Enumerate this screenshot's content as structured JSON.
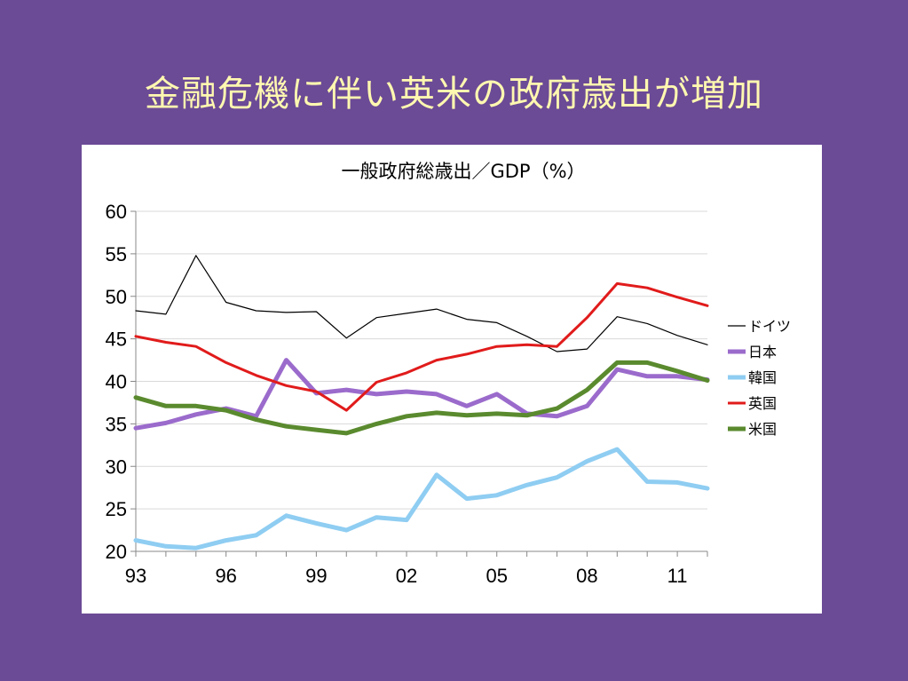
{
  "slide": {
    "title": "金融危機に伴い英米の政府歳出が増加",
    "title_color": "#fff8b0",
    "background_color": "#6b4a96"
  },
  "chart_data": {
    "type": "line",
    "title": "一般政府総歳出／GDP（%）",
    "xlabel": "",
    "ylabel": "",
    "x": [
      1993,
      1994,
      1995,
      1996,
      1997,
      1998,
      1999,
      2000,
      2001,
      2002,
      2003,
      2004,
      2005,
      2006,
      2007,
      2008,
      2009,
      2010,
      2011,
      2012
    ],
    "x_tick_labels": [
      "93",
      "96",
      "99",
      "02",
      "05",
      "08",
      "11"
    ],
    "x_tick_values": [
      1993,
      1996,
      1999,
      2002,
      2005,
      2008,
      2011
    ],
    "ylim": [
      20,
      60
    ],
    "y_ticks": [
      20,
      25,
      30,
      35,
      40,
      45,
      50,
      55,
      60
    ],
    "grid": true,
    "legend_position": "right",
    "series": [
      {
        "name": "ドイツ",
        "color": "#000000",
        "width": 1.2,
        "values": [
          48.3,
          47.9,
          54.8,
          49.3,
          48.3,
          48.1,
          48.2,
          45.1,
          47.5,
          48.0,
          48.5,
          47.3,
          46.9,
          45.3,
          43.5,
          43.8,
          47.6,
          46.8,
          45.4,
          44.3
        ]
      },
      {
        "name": "日本",
        "color": "#9b6bcc",
        "width": 5,
        "values": [
          34.5,
          35.1,
          36.1,
          36.8,
          35.9,
          42.5,
          38.6,
          39.0,
          38.5,
          38.8,
          38.5,
          37.1,
          38.5,
          36.2,
          35.9,
          37.1,
          41.4,
          40.6,
          40.6,
          40.2
        ]
      },
      {
        "name": "韓国",
        "color": "#8fcdf2",
        "width": 5,
        "values": [
          21.3,
          20.6,
          20.4,
          21.3,
          21.9,
          24.2,
          23.3,
          22.5,
          24.0,
          23.7,
          29.0,
          26.2,
          26.6,
          27.8,
          28.7,
          30.6,
          32.0,
          28.2,
          28.1,
          27.4
        ]
      },
      {
        "name": "英国",
        "color": "#e11b1b",
        "width": 3,
        "values": [
          45.3,
          44.6,
          44.1,
          42.2,
          40.7,
          39.5,
          38.8,
          36.6,
          39.9,
          41.0,
          42.5,
          43.2,
          44.1,
          44.3,
          44.1,
          47.5,
          51.5,
          51.0,
          49.9,
          48.9
        ]
      },
      {
        "name": "米国",
        "color": "#5a8a2e",
        "width": 5,
        "values": [
          38.1,
          37.1,
          37.1,
          36.6,
          35.5,
          34.7,
          34.3,
          33.9,
          35.0,
          35.9,
          36.3,
          36.0,
          36.2,
          36.0,
          36.8,
          39.0,
          42.2,
          42.2,
          41.2,
          40.1
        ]
      }
    ]
  }
}
